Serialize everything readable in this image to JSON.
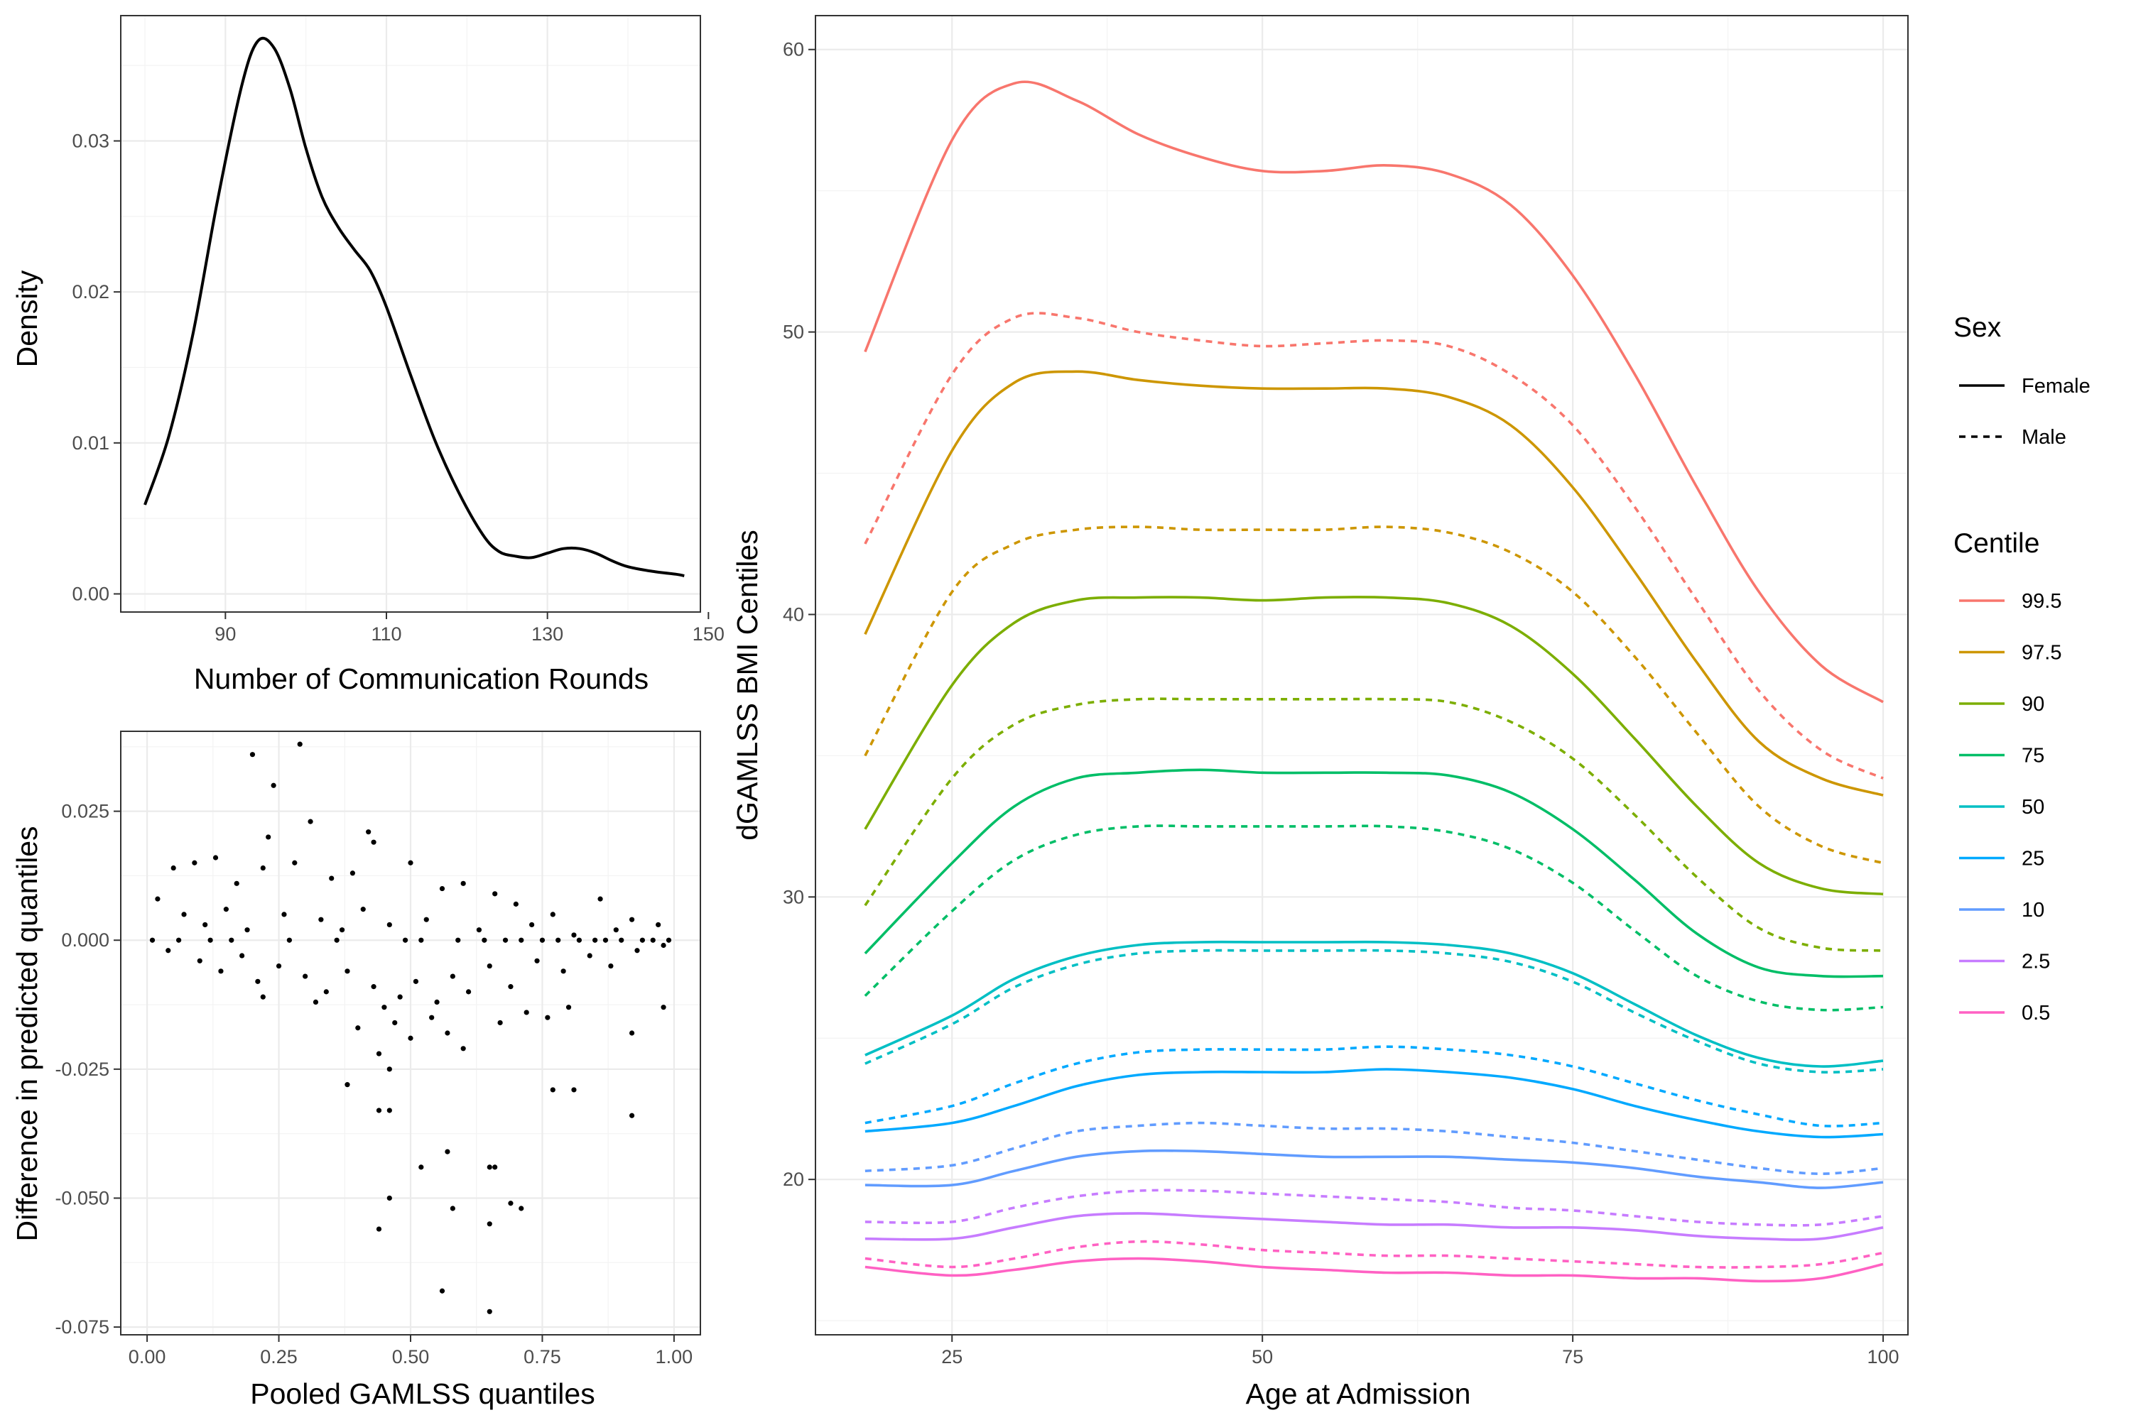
{
  "chart_data": [
    {
      "id": "density",
      "type": "line",
      "xlabel": "Number of Communication Rounds",
      "ylabel": "Density",
      "xlim": [
        77,
        149
      ],
      "ylim": [
        -0.0012,
        0.0383
      ],
      "x_ticks": [
        90,
        110,
        130,
        150
      ],
      "x_tick_labels": [
        "90",
        "110",
        "130",
        "150"
      ],
      "y_ticks": [
        0.0,
        0.01,
        0.02,
        0.03
      ],
      "y_tick_labels": [
        "0.00",
        "0.01",
        "0.02",
        "0.03"
      ],
      "grid": true,
      "series": [
        {
          "color": "#000000",
          "points": [
            [
              80,
              0.0059
            ],
            [
              83,
              0.0105
            ],
            [
              86,
              0.0173
            ],
            [
              89,
              0.026
            ],
            [
              92,
              0.0336
            ],
            [
              94,
              0.0366
            ],
            [
              96,
              0.0362
            ],
            [
              98,
              0.0335
            ],
            [
              100,
              0.0295
            ],
            [
              102,
              0.0263
            ],
            [
              104,
              0.0243
            ],
            [
              106,
              0.0228
            ],
            [
              108,
              0.0214
            ],
            [
              110,
              0.019
            ],
            [
              113,
              0.0145
            ],
            [
              116,
              0.0102
            ],
            [
              119,
              0.0067
            ],
            [
              122,
              0.0039
            ],
            [
              124,
              0.0028
            ],
            [
              126,
              0.0025
            ],
            [
              128,
              0.0024
            ],
            [
              130,
              0.0027
            ],
            [
              132,
              0.003
            ],
            [
              134,
              0.003
            ],
            [
              136,
              0.0027
            ],
            [
              138,
              0.0022
            ],
            [
              140,
              0.0018
            ],
            [
              143,
              0.0015
            ],
            [
              146,
              0.0013
            ],
            [
              147,
              0.0012
            ]
          ]
        }
      ]
    },
    {
      "id": "scatter",
      "type": "scatter",
      "xlabel": "Pooled GAMLSS quantiles",
      "ylabel": "Difference in predicted quantiles",
      "xlim": [
        -0.05,
        1.05
      ],
      "ylim": [
        -0.0765,
        0.0405
      ],
      "x_ticks": [
        0.0,
        0.25,
        0.5,
        0.75,
        1.0
      ],
      "x_tick_labels": [
        "0.00",
        "0.25",
        "0.50",
        "0.75",
        "1.00"
      ],
      "y_ticks": [
        -0.075,
        -0.05,
        -0.025,
        0.0,
        0.025
      ],
      "y_tick_labels": [
        "-0.075",
        "-0.050",
        "-0.025",
        "0.000",
        "0.025"
      ],
      "grid": true,
      "marker_color": "#000000",
      "points": [
        [
          0.2,
          0.036
        ],
        [
          0.24,
          0.03
        ],
        [
          0.29,
          0.038
        ],
        [
          0.31,
          0.023
        ],
        [
          0.23,
          0.02
        ],
        [
          0.42,
          0.021
        ],
        [
          0.43,
          0.019
        ],
        [
          0.13,
          0.016
        ],
        [
          0.05,
          0.014
        ],
        [
          0.09,
          0.015
        ],
        [
          0.17,
          0.011
        ],
        [
          0.22,
          0.014
        ],
        [
          0.28,
          0.015
        ],
        [
          0.35,
          0.012
        ],
        [
          0.39,
          0.013
        ],
        [
          0.5,
          0.015
        ],
        [
          0.56,
          0.01
        ],
        [
          0.6,
          0.011
        ],
        [
          0.66,
          0.009
        ],
        [
          0.7,
          0.007
        ],
        [
          0.77,
          0.005
        ],
        [
          0.86,
          0.008
        ],
        [
          0.92,
          0.004
        ],
        [
          0.97,
          0.003
        ],
        [
          0.02,
          0.008
        ],
        [
          0.07,
          0.005
        ],
        [
          0.11,
          0.003
        ],
        [
          0.15,
          0.006
        ],
        [
          0.19,
          0.002
        ],
        [
          0.26,
          0.005
        ],
        [
          0.33,
          0.004
        ],
        [
          0.37,
          0.002
        ],
        [
          0.41,
          0.006
        ],
        [
          0.46,
          0.003
        ],
        [
          0.53,
          0.004
        ],
        [
          0.63,
          0.002
        ],
        [
          0.73,
          0.003
        ],
        [
          0.81,
          0.001
        ],
        [
          0.89,
          0.002
        ],
        [
          0.04,
          -0.002
        ],
        [
          0.1,
          -0.004
        ],
        [
          0.14,
          -0.006
        ],
        [
          0.18,
          -0.003
        ],
        [
          0.21,
          -0.008
        ],
        [
          0.25,
          -0.005
        ],
        [
          0.3,
          -0.007
        ],
        [
          0.34,
          -0.01
        ],
        [
          0.38,
          -0.006
        ],
        [
          0.43,
          -0.009
        ],
        [
          0.45,
          -0.013
        ],
        [
          0.48,
          -0.011
        ],
        [
          0.51,
          -0.008
        ],
        [
          0.55,
          -0.012
        ],
        [
          0.58,
          -0.007
        ],
        [
          0.61,
          -0.01
        ],
        [
          0.65,
          -0.005
        ],
        [
          0.69,
          -0.009
        ],
        [
          0.74,
          -0.004
        ],
        [
          0.79,
          -0.006
        ],
        [
          0.84,
          -0.003
        ],
        [
          0.88,
          -0.005
        ],
        [
          0.93,
          -0.002
        ],
        [
          0.98,
          -0.001
        ],
        [
          0.22,
          -0.011
        ],
        [
          0.32,
          -0.012
        ],
        [
          0.4,
          -0.017
        ],
        [
          0.44,
          -0.022
        ],
        [
          0.47,
          -0.016
        ],
        [
          0.5,
          -0.019
        ],
        [
          0.54,
          -0.015
        ],
        [
          0.57,
          -0.018
        ],
        [
          0.6,
          -0.021
        ],
        [
          0.67,
          -0.016
        ],
        [
          0.72,
          -0.014
        ],
        [
          0.76,
          -0.015
        ],
        [
          0.8,
          -0.013
        ],
        [
          0.92,
          -0.018
        ],
        [
          0.98,
          -0.013
        ],
        [
          0.46,
          -0.025
        ],
        [
          0.38,
          -0.028
        ],
        [
          0.44,
          -0.033
        ],
        [
          0.46,
          -0.033
        ],
        [
          0.77,
          -0.029
        ],
        [
          0.81,
          -0.029
        ],
        [
          0.92,
          -0.034
        ],
        [
          0.52,
          -0.044
        ],
        [
          0.57,
          -0.041
        ],
        [
          0.65,
          -0.044
        ],
        [
          0.66,
          -0.044
        ],
        [
          0.46,
          -0.05
        ],
        [
          0.58,
          -0.052
        ],
        [
          0.69,
          -0.051
        ],
        [
          0.71,
          -0.052
        ],
        [
          0.44,
          -0.056
        ],
        [
          0.65,
          -0.055
        ],
        [
          0.56,
          -0.068
        ],
        [
          0.65,
          -0.072
        ],
        [
          0.01,
          0.0
        ],
        [
          0.06,
          0.0
        ],
        [
          0.12,
          0.0
        ],
        [
          0.16,
          0.0
        ],
        [
          0.27,
          0.0
        ],
        [
          0.36,
          0.0
        ],
        [
          0.49,
          0.0
        ],
        [
          0.52,
          0.0
        ],
        [
          0.59,
          0.0
        ],
        [
          0.64,
          0.0
        ],
        [
          0.68,
          0.0
        ],
        [
          0.71,
          0.0
        ],
        [
          0.75,
          0.0
        ],
        [
          0.78,
          0.0
        ],
        [
          0.82,
          0.0
        ],
        [
          0.85,
          0.0
        ],
        [
          0.87,
          0.0
        ],
        [
          0.9,
          0.0
        ],
        [
          0.94,
          0.0
        ],
        [
          0.96,
          0.0
        ],
        [
          0.99,
          0.0
        ]
      ]
    },
    {
      "id": "centiles",
      "type": "line",
      "xlabel": "Age at Admission",
      "ylabel": "dGAMLSS BMI Centiles",
      "xlim": [
        14,
        102
      ],
      "ylim": [
        14.5,
        61.2
      ],
      "x_ticks": [
        25,
        50,
        75,
        100
      ],
      "x_tick_labels": [
        "25",
        "50",
        "75",
        "100"
      ],
      "y_ticks": [
        20,
        30,
        40,
        50,
        60
      ],
      "y_tick_labels": [
        "20",
        "30",
        "40",
        "50",
        "60"
      ],
      "grid": true,
      "x_values": [
        18,
        25,
        30,
        35,
        40,
        45,
        50,
        55,
        60,
        65,
        70,
        75,
        80,
        85,
        90,
        95,
        100
      ],
      "series": [
        {
          "centile": "99.5",
          "sex": "Female",
          "color": "#F8766D",
          "values": [
            49.3,
            56.8,
            58.8,
            58.2,
            57.0,
            56.2,
            55.7,
            55.7,
            55.9,
            55.6,
            54.5,
            52.0,
            48.5,
            44.5,
            40.8,
            38.2,
            36.9
          ]
        },
        {
          "centile": "99.5",
          "sex": "Male",
          "color": "#F8766D",
          "values": [
            42.5,
            48.5,
            50.5,
            50.5,
            50.0,
            49.7,
            49.5,
            49.6,
            49.7,
            49.5,
            48.5,
            46.7,
            43.8,
            40.5,
            37.3,
            35.2,
            34.2
          ]
        },
        {
          "centile": "97.5",
          "sex": "Female",
          "color": "#CD9600",
          "values": [
            39.3,
            45.8,
            48.2,
            48.6,
            48.3,
            48.1,
            48.0,
            48.0,
            48.0,
            47.7,
            46.7,
            44.5,
            41.5,
            38.3,
            35.5,
            34.2,
            33.6
          ]
        },
        {
          "centile": "97.5",
          "sex": "Male",
          "color": "#CD9600",
          "values": [
            35.0,
            40.8,
            42.5,
            43.0,
            43.1,
            43.0,
            43.0,
            43.0,
            43.1,
            42.9,
            42.2,
            40.8,
            38.5,
            35.8,
            33.2,
            31.8,
            31.2
          ]
        },
        {
          "centile": "90",
          "sex": "Female",
          "color": "#7CAE00",
          "values": [
            32.4,
            37.5,
            39.7,
            40.5,
            40.6,
            40.6,
            40.5,
            40.6,
            40.6,
            40.4,
            39.6,
            37.9,
            35.6,
            33.2,
            31.2,
            30.3,
            30.1
          ]
        },
        {
          "centile": "90",
          "sex": "Male",
          "color": "#7CAE00",
          "values": [
            29.7,
            34.2,
            36.1,
            36.8,
            37.0,
            37.0,
            37.0,
            37.0,
            37.0,
            36.9,
            36.2,
            34.9,
            32.9,
            30.7,
            28.9,
            28.2,
            28.1
          ]
        },
        {
          "centile": "75",
          "sex": "Female",
          "color": "#00BE67",
          "values": [
            28.0,
            31.2,
            33.2,
            34.2,
            34.4,
            34.5,
            34.4,
            34.4,
            34.4,
            34.3,
            33.7,
            32.4,
            30.6,
            28.7,
            27.5,
            27.2,
            27.2
          ]
        },
        {
          "centile": "75",
          "sex": "Male",
          "color": "#00BE67",
          "values": [
            26.5,
            29.5,
            31.3,
            32.2,
            32.5,
            32.5,
            32.5,
            32.5,
            32.5,
            32.3,
            31.7,
            30.5,
            28.8,
            27.2,
            26.3,
            26.0,
            26.1
          ]
        },
        {
          "centile": "50",
          "sex": "Female",
          "color": "#00BFC4",
          "values": [
            24.4,
            25.8,
            27.1,
            27.9,
            28.3,
            28.4,
            28.4,
            28.4,
            28.4,
            28.3,
            28.0,
            27.3,
            26.2,
            25.1,
            24.3,
            24.0,
            24.2
          ]
        },
        {
          "centile": "50",
          "sex": "Male",
          "color": "#00BFC4",
          "values": [
            24.1,
            25.5,
            26.8,
            27.6,
            28.0,
            28.1,
            28.1,
            28.1,
            28.1,
            28.0,
            27.7,
            27.0,
            25.9,
            24.9,
            24.1,
            23.8,
            23.9
          ]
        },
        {
          "centile": "25",
          "sex": "Female",
          "color": "#00A9FF",
          "values": [
            21.7,
            22.0,
            22.6,
            23.3,
            23.7,
            23.8,
            23.8,
            23.8,
            23.9,
            23.8,
            23.6,
            23.2,
            22.6,
            22.1,
            21.7,
            21.5,
            21.6
          ]
        },
        {
          "centile": "25",
          "sex": "Male",
          "color": "#00A9FF",
          "values": [
            22.0,
            22.6,
            23.4,
            24.1,
            24.5,
            24.6,
            24.6,
            24.6,
            24.7,
            24.6,
            24.4,
            24.0,
            23.4,
            22.8,
            22.3,
            21.9,
            22.0
          ]
        },
        {
          "centile": "10",
          "sex": "Female",
          "color": "#619CFF",
          "values": [
            19.8,
            19.8,
            20.3,
            20.8,
            21.0,
            21.0,
            20.9,
            20.8,
            20.8,
            20.8,
            20.7,
            20.6,
            20.4,
            20.1,
            19.9,
            19.7,
            19.9
          ]
        },
        {
          "centile": "10",
          "sex": "Male",
          "color": "#619CFF",
          "values": [
            20.3,
            20.5,
            21.1,
            21.7,
            21.9,
            22.0,
            21.9,
            21.8,
            21.8,
            21.7,
            21.5,
            21.3,
            21.0,
            20.7,
            20.4,
            20.2,
            20.4
          ]
        },
        {
          "centile": "2.5",
          "sex": "Female",
          "color": "#C77CFF",
          "values": [
            17.9,
            17.9,
            18.3,
            18.7,
            18.8,
            18.7,
            18.6,
            18.5,
            18.4,
            18.4,
            18.3,
            18.3,
            18.2,
            18.0,
            17.9,
            17.9,
            18.3
          ]
        },
        {
          "centile": "2.5",
          "sex": "Male",
          "color": "#C77CFF",
          "values": [
            18.5,
            18.5,
            19.0,
            19.4,
            19.6,
            19.6,
            19.5,
            19.4,
            19.3,
            19.2,
            19.0,
            18.9,
            18.7,
            18.5,
            18.4,
            18.4,
            18.7
          ]
        },
        {
          "centile": "0.5",
          "sex": "Female",
          "color": "#FF61C3",
          "values": [
            16.9,
            16.6,
            16.8,
            17.1,
            17.2,
            17.1,
            16.9,
            16.8,
            16.7,
            16.7,
            16.6,
            16.6,
            16.5,
            16.5,
            16.4,
            16.5,
            17.0
          ]
        },
        {
          "centile": "0.5",
          "sex": "Male",
          "color": "#FF61C3",
          "values": [
            17.2,
            16.9,
            17.2,
            17.6,
            17.8,
            17.7,
            17.5,
            17.4,
            17.3,
            17.3,
            17.2,
            17.1,
            17.0,
            16.9,
            16.9,
            17.0,
            17.4
          ]
        }
      ],
      "legend": {
        "placement": "right",
        "sex_title": "Sex",
        "sex_entries": [
          {
            "label": "Female",
            "linetype": "solid"
          },
          {
            "label": "Male",
            "linetype": "dashed"
          }
        ],
        "centile_title": "Centile",
        "centile_entries": [
          {
            "label": "99.5",
            "color": "#F8766D"
          },
          {
            "label": "97.5",
            "color": "#CD9600"
          },
          {
            "label": "90",
            "color": "#7CAE00"
          },
          {
            "label": "75",
            "color": "#00BE67"
          },
          {
            "label": "50",
            "color": "#00BFC4"
          },
          {
            "label": "25",
            "color": "#00A9FF"
          },
          {
            "label": "10",
            "color": "#619CFF"
          },
          {
            "label": "2.5",
            "color": "#C77CFF"
          },
          {
            "label": "0.5",
            "color": "#FF61C3"
          }
        ]
      }
    }
  ]
}
